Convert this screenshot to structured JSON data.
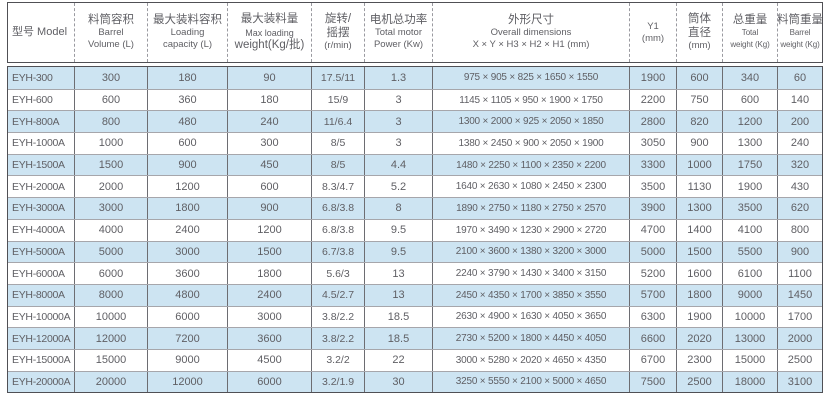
{
  "table": {
    "name": "EYH series specification table",
    "colors": {
      "row_alt_background": "#cde4f2",
      "text": "#5f5f64",
      "outer_border": "#505055",
      "inner_vertical_border": "#6d6d72",
      "inner_horizontal_border": "#a6a6ab"
    },
    "columns": [
      {
        "id": "model",
        "lines": [
          "型号 Model"
        ]
      },
      {
        "id": "barrel-volume",
        "lines": [
          "料筒容积",
          "Barrel",
          "Volume (L)"
        ]
      },
      {
        "id": "loading-capacity",
        "lines": [
          "最大装料容积",
          "Loading",
          "capacity (L)"
        ]
      },
      {
        "id": "max-loading-weight",
        "lines": [
          "最大装料量",
          "Max loading",
          "weight(Kg/批)"
        ]
      },
      {
        "id": "rotation-speed",
        "lines": [
          "旋转/",
          "摇摆",
          "(r/min)"
        ]
      },
      {
        "id": "total-motor-power",
        "lines": [
          "电机总功率",
          "Total motor",
          "Power (Kw)"
        ]
      },
      {
        "id": "overall-dimensions",
        "lines": [
          "外形尺寸",
          "Overall dimensions",
          "X × Y × H3 × H2 × H1 (mm)"
        ]
      },
      {
        "id": "y1",
        "lines": [
          "Y1",
          "(mm)"
        ]
      },
      {
        "id": "cylinder-diameter",
        "lines": [
          "筒体",
          "直径",
          "(mm)"
        ]
      },
      {
        "id": "total-weight",
        "lines": [
          "总重量",
          "Total",
          "weight (Kg)"
        ]
      },
      {
        "id": "barrel-weight",
        "lines": [
          "料筒重量",
          "Barrel",
          "weight (Kg)"
        ]
      }
    ],
    "rows": [
      [
        "EYH-300",
        "300",
        "180",
        "90",
        "17.5/11",
        "1.3",
        "975 × 905 × 825 × 1650 × 1550",
        "1900",
        "600",
        "340",
        "60"
      ],
      [
        "EYH-600",
        "600",
        "360",
        "180",
        "15/9",
        "3",
        "1145 × 1105 × 950 × 1900 × 1750",
        "2200",
        "750",
        "600",
        "140"
      ],
      [
        "EYH-800A",
        "800",
        "480",
        "240",
        "11/6.4",
        "3",
        "1300 × 2000 × 925 × 2050 × 1850",
        "2800",
        "820",
        "1200",
        "200"
      ],
      [
        "EYH-1000A",
        "1000",
        "600",
        "300",
        "8/5",
        "3",
        "1380 × 2450 × 900 × 2050 × 1900",
        "3050",
        "900",
        "1300",
        "240"
      ],
      [
        "EYH-1500A",
        "1500",
        "900",
        "450",
        "8/5",
        "4.4",
        "1480 × 2250 × 1100 × 2350 × 2200",
        "3300",
        "1000",
        "1750",
        "320"
      ],
      [
        "EYH-2000A",
        "2000",
        "1200",
        "600",
        "8.3/4.7",
        "5.2",
        "1640 × 2630 × 1080 × 2450 × 2300",
        "3500",
        "1130",
        "1900",
        "430"
      ],
      [
        "EYH-3000A",
        "3000",
        "1800",
        "900",
        "6.8/3.8",
        "8",
        "1890 × 2750 × 1180 × 2750 × 2570",
        "3900",
        "1300",
        "3500",
        "620"
      ],
      [
        "EYH-4000A",
        "4000",
        "2400",
        "1200",
        "6.8/3.8",
        "9.5",
        "1970 × 3490 × 1230 × 2900 × 2720",
        "4700",
        "1400",
        "4100",
        "800"
      ],
      [
        "EYH-5000A",
        "5000",
        "3000",
        "1500",
        "6.7/3.8",
        "9.5",
        "2100 × 3600 × 1380 × 3200 × 3000",
        "5000",
        "1500",
        "5500",
        "900"
      ],
      [
        "EYH-6000A",
        "6000",
        "3600",
        "1800",
        "5.6/3",
        "13",
        "2240 × 3790 × 1430 × 3400 × 3150",
        "5200",
        "1600",
        "6100",
        "1100"
      ],
      [
        "EYH-8000A",
        "8000",
        "4800",
        "2400",
        "4.5/2.7",
        "13",
        "2450 × 4350 × 1700 × 3850 × 3550",
        "5700",
        "1800",
        "9000",
        "1450"
      ],
      [
        "EYH-10000A",
        "10000",
        "6000",
        "3000",
        "3.8/2.2",
        "18.5",
        "2630 × 4900 × 1630 × 4050 × 3650",
        "6300",
        "1900",
        "10000",
        "1700"
      ],
      [
        "EYH-12000A",
        "12000",
        "7200",
        "3600",
        "3.8/2.2",
        "18.5",
        "2730 × 5200 × 1800 × 4450 × 4050",
        "6600",
        "2020",
        "13000",
        "2000"
      ],
      [
        "EYH-15000A",
        "15000",
        "9000",
        "4500",
        "3.2/2",
        "22",
        "3000 × 5280 × 2020 × 4650 × 4350",
        "6700",
        "2300",
        "15000",
        "2500"
      ],
      [
        "EYH-20000A",
        "20000",
        "12000",
        "6000",
        "3.2/1.9",
        "30",
        "3250 × 5550 × 2100 × 5000 × 4650",
        "7500",
        "2500",
        "18000",
        "3100"
      ]
    ]
  }
}
